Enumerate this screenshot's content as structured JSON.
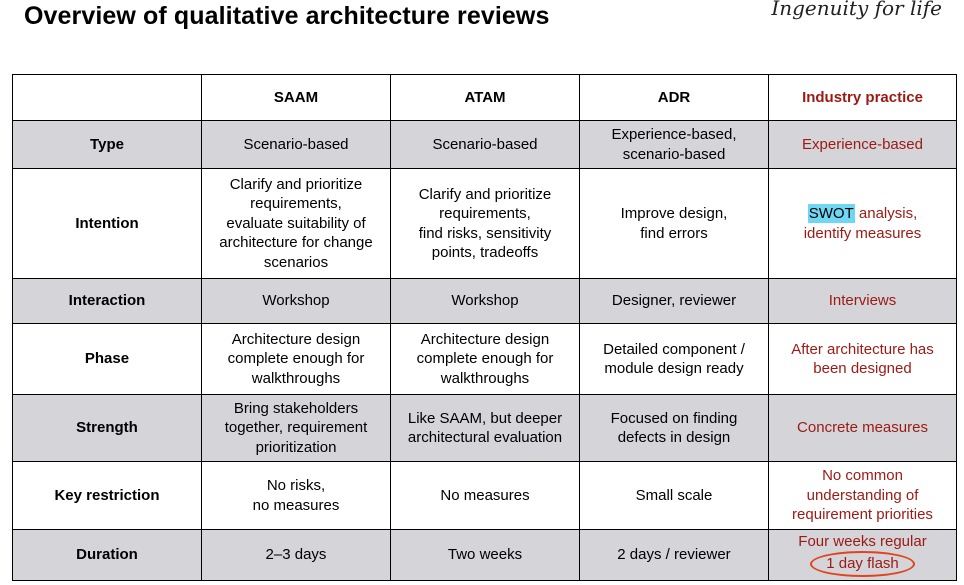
{
  "slide": {
    "title": "Overview of qualitative architecture reviews",
    "logo_text": "Ingenuity for life"
  },
  "table": {
    "headers": [
      "",
      "SAAM",
      "ATAM",
      "ADR",
      "Industry practice"
    ],
    "rows": {
      "type": {
        "label": "Type",
        "saam": [
          "Scenario-based"
        ],
        "atam": [
          "Scenario-based"
        ],
        "adr": [
          "Experience-based,",
          "scenario-based"
        ],
        "industry": [
          "Experience-based"
        ]
      },
      "intention": {
        "label": "Intention",
        "saam": [
          "Clarify and prioritize",
          "requirements,",
          "evaluate suitability of",
          "architecture for change",
          "scenarios"
        ],
        "atam": [
          "Clarify and prioritize",
          "requirements,",
          "find risks, sensitivity",
          "points, tradeoffs"
        ],
        "adr": [
          "Improve design,",
          "find errors"
        ],
        "industry_highlight": "SWOT",
        "industry_rest": " analysis,",
        "industry_line2": "identify measures"
      },
      "interaction": {
        "label": "Interaction",
        "saam": [
          "Workshop"
        ],
        "atam": [
          "Workshop"
        ],
        "adr": [
          "Designer, reviewer"
        ],
        "industry": [
          "Interviews"
        ]
      },
      "phase": {
        "label": "Phase",
        "saam": [
          "Architecture design",
          "complete enough for",
          "walkthroughs"
        ],
        "atam": [
          "Architecture design",
          "complete enough for",
          "walkthroughs"
        ],
        "adr": [
          "Detailed component /",
          "module design ready"
        ],
        "industry": [
          "After architecture has",
          "been designed"
        ]
      },
      "strength": {
        "label": "Strength",
        "saam": [
          "Bring stakeholders",
          "together, requirement",
          "prioritization"
        ],
        "atam": [
          "Like SAAM, but deeper",
          "architectural evaluation"
        ],
        "adr": [
          "Focused on finding",
          "defects in design"
        ],
        "industry": [
          "Concrete measures"
        ]
      },
      "restriction": {
        "label": "Key restriction",
        "saam": [
          "No risks,",
          "no measures"
        ],
        "atam": [
          "No measures"
        ],
        "adr": [
          "Small scale"
        ],
        "industry": [
          "No common",
          "understanding of",
          "requirement priorities"
        ]
      },
      "duration": {
        "label": "Duration",
        "saam": [
          "2–3 days"
        ],
        "atam": [
          "Two weeks"
        ],
        "adr": [
          "2 days / reviewer"
        ],
        "industry_line1": "Four weeks regular",
        "industry_circled": "1 day flash"
      }
    }
  },
  "colors": {
    "industry_text": "#9b1a14",
    "row_shade": "#d4d4d9",
    "highlight": "#6fd6f3",
    "circle": "#e2421c"
  }
}
